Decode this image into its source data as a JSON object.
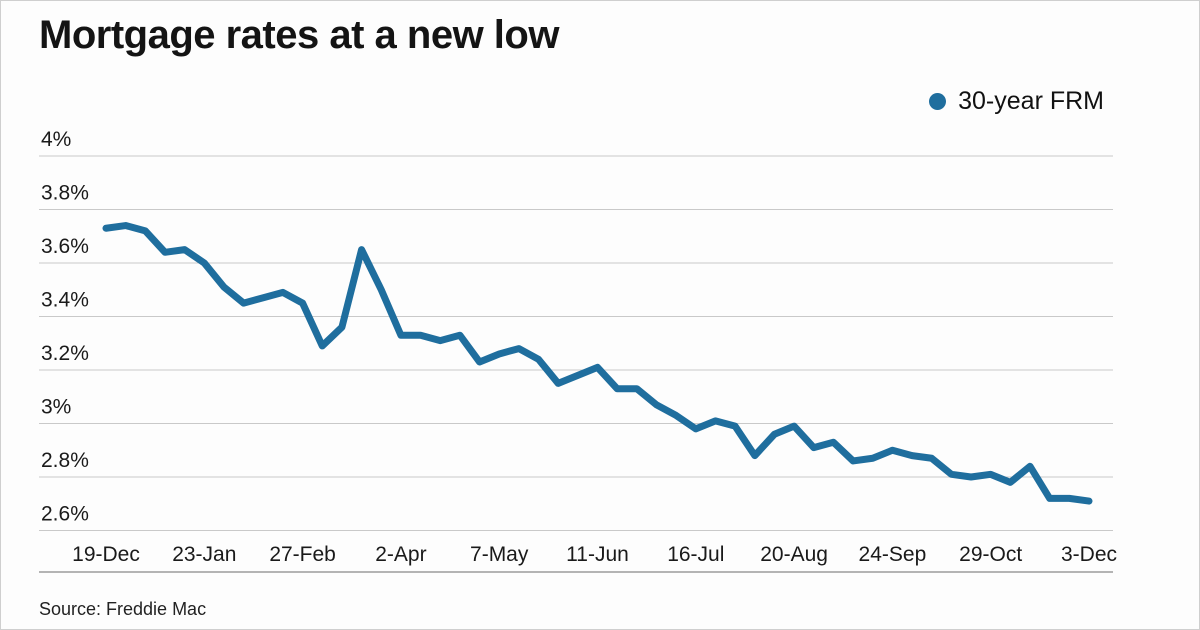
{
  "title": "Mortgage rates at a new low",
  "legend": {
    "label": "30-year FRM",
    "color": "#1f6e9e"
  },
  "source": "Source: Freddie Mac",
  "chart_data": {
    "type": "line",
    "title": "Mortgage rates at a new low",
    "xlabel": "",
    "ylabel": "",
    "grid": true,
    "legend_position": "top-right",
    "ylim": [
      2.6,
      4.0
    ],
    "y_ticks": [
      2.6,
      2.8,
      3.0,
      3.2,
      3.4,
      3.6,
      3.8,
      4.0
    ],
    "y_tick_labels": [
      "2.6%",
      "2.8%",
      "3%",
      "3.2%",
      "3.4%",
      "3.6%",
      "3.8%",
      "4%"
    ],
    "x_tick_labels": [
      "19-Dec",
      "23-Jan",
      "27-Feb",
      "2-Apr",
      "7-May",
      "11-Jun",
      "16-Jul",
      "20-Aug",
      "24-Sep",
      "29-Oct",
      "3-Dec"
    ],
    "x_tick_indices": [
      0,
      5,
      10,
      15,
      20,
      25,
      30,
      35,
      40,
      45,
      50
    ],
    "series": [
      {
        "name": "30-year FRM",
        "color": "#1f6e9e",
        "values": [
          3.73,
          3.74,
          3.72,
          3.64,
          3.65,
          3.6,
          3.51,
          3.45,
          3.47,
          3.49,
          3.45,
          3.29,
          3.36,
          3.65,
          3.5,
          3.33,
          3.33,
          3.31,
          3.33,
          3.23,
          3.26,
          3.28,
          3.24,
          3.15,
          3.18,
          3.21,
          3.13,
          3.13,
          3.07,
          3.03,
          2.98,
          3.01,
          2.99,
          2.88,
          2.96,
          2.99,
          2.91,
          2.93,
          2.86,
          2.87,
          2.9,
          2.88,
          2.87,
          2.81,
          2.8,
          2.81,
          2.78,
          2.84,
          2.72,
          2.72,
          2.71
        ]
      }
    ]
  }
}
